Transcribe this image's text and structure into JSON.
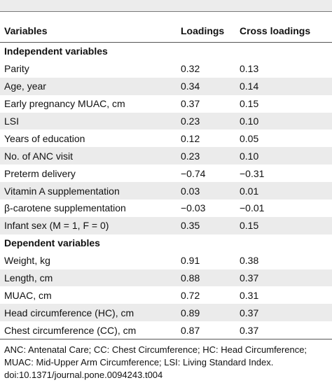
{
  "table": {
    "headers": [
      "Variables",
      "Loadings",
      "Cross loadings"
    ],
    "sections": [
      {
        "title": "Independent variables",
        "rows": [
          {
            "variable": "Parity",
            "loading": "0.32",
            "cross": "0.13"
          },
          {
            "variable": "Age, year",
            "loading": "0.34",
            "cross": "0.14"
          },
          {
            "variable": "Early pregnancy MUAC, cm",
            "loading": "0.37",
            "cross": "0.15"
          },
          {
            "variable": "LSI",
            "loading": "0.23",
            "cross": "0.10"
          },
          {
            "variable": "Years of education",
            "loading": "0.12",
            "cross": "0.05"
          },
          {
            "variable": "No. of ANC visit",
            "loading": "0.23",
            "cross": "0.10"
          },
          {
            "variable": "Preterm delivery",
            "loading": "−0.74",
            "cross": "−0.31"
          },
          {
            "variable": "Vitamin A supplementation",
            "loading": "0.03",
            "cross": "0.01"
          },
          {
            "variable": "β-carotene supplementation",
            "loading": "−0.03",
            "cross": "−0.01"
          },
          {
            "variable": "Infant sex (M = 1, F = 0)",
            "loading": "0.35",
            "cross": "0.15"
          }
        ]
      },
      {
        "title": "Dependent variables",
        "rows": [
          {
            "variable": "Weight, kg",
            "loading": "0.91",
            "cross": "0.38"
          },
          {
            "variable": "Length, cm",
            "loading": "0.88",
            "cross": "0.37"
          },
          {
            "variable": "MUAC, cm",
            "loading": "0.72",
            "cross": "0.31"
          },
          {
            "variable": "Head circumference (HC), cm",
            "loading": "0.89",
            "cross": "0.37"
          },
          {
            "variable": "Chest circumference (CC), cm",
            "loading": "0.87",
            "cross": "0.37"
          }
        ]
      }
    ]
  },
  "footnote": {
    "abbreviations": "ANC: Antenatal Care; CC: Chest Circumference; HC: Head Circumference; MUAC: Mid-Upper Arm Circumference; LSI: Living Standard Index.",
    "doi": "doi:10.1371/journal.pone.0094243.t004"
  },
  "colors": {
    "zebra_row": "#ebebeb",
    "rule": "#555555",
    "text": "#111111"
  }
}
